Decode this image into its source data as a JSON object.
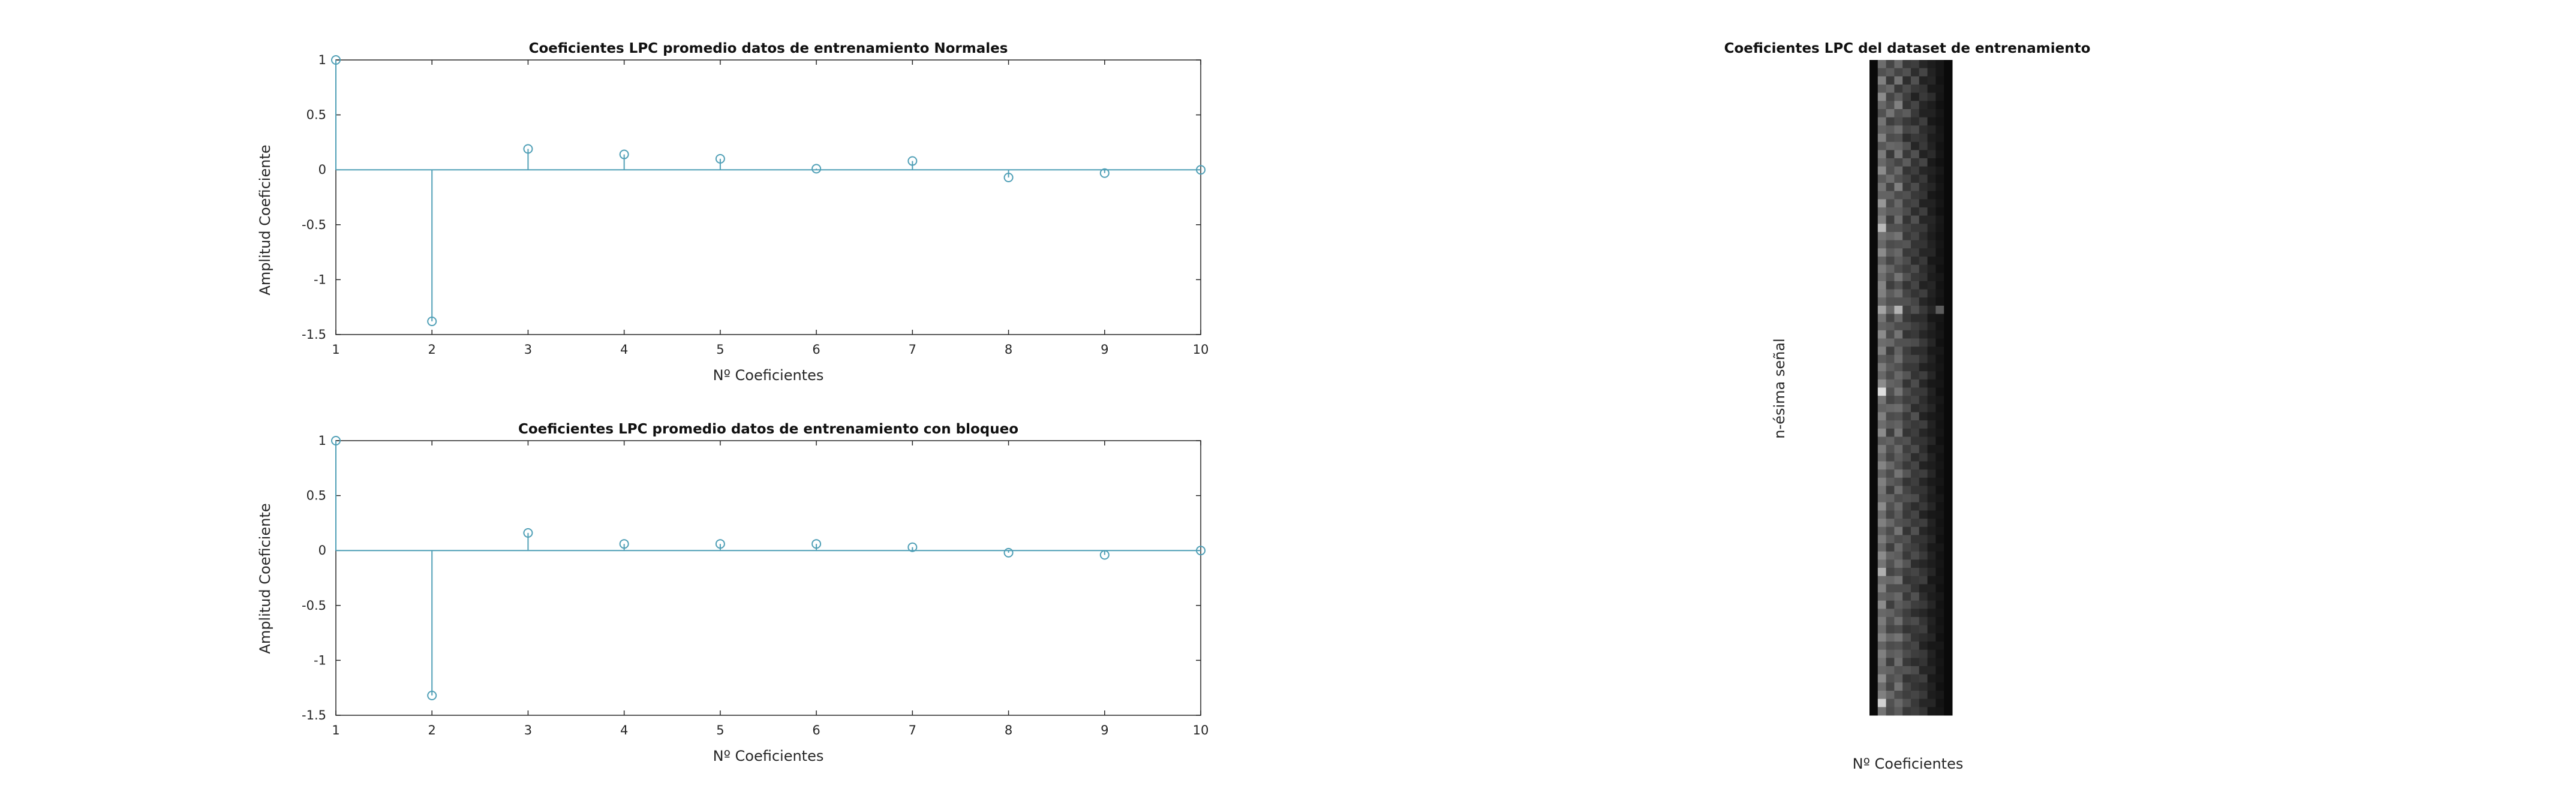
{
  "colors": {
    "stem": "#4f9fb6",
    "axis": "#262626",
    "heatmap_bg": "#0a0a0a"
  },
  "chart_data": [
    {
      "type": "stem",
      "title": "Coeficientes LPC promedio datos de entrenamiento Normales",
      "xlabel": "Nº Coeficientes",
      "ylabel": "Amplitud Coeficiente",
      "xlim": [
        1,
        10
      ],
      "ylim": [
        -1.5,
        1
      ],
      "xticks": [
        "1",
        "2",
        "3",
        "4",
        "5",
        "6",
        "7",
        "8",
        "9",
        "10"
      ],
      "yticks": [
        "1",
        "0.5",
        "0",
        "-0.5",
        "-1",
        "-1.5"
      ],
      "grid": false,
      "series": [
        {
          "x": [
            1,
            2,
            3,
            4,
            5,
            6,
            7,
            8,
            9,
            10
          ],
          "values": [
            1,
            -1.38,
            0.19,
            0.14,
            0.1,
            0.01,
            0.08,
            -0.07,
            -0.03,
            0.0
          ]
        }
      ]
    },
    {
      "type": "stem",
      "title": "Coeficientes LPC promedio datos de entrenamiento con bloqueo",
      "xlabel": "Nº Coeficientes",
      "ylabel": "Amplitud Coeficiente",
      "xlim": [
        1,
        10
      ],
      "ylim": [
        -1.5,
        1
      ],
      "xticks": [
        "1",
        "2",
        "3",
        "4",
        "5",
        "6",
        "7",
        "8",
        "9",
        "10"
      ],
      "yticks": [
        "1",
        "0.5",
        "0",
        "-0.5",
        "-1",
        "-1.5"
      ],
      "grid": false,
      "series": [
        {
          "x": [
            1,
            2,
            3,
            4,
            5,
            6,
            7,
            8,
            9,
            10
          ],
          "values": [
            1,
            -1.32,
            0.16,
            0.06,
            0.06,
            0.06,
            0.03,
            -0.02,
            -0.04,
            0.0
          ]
        }
      ]
    },
    {
      "type": "heatmap",
      "title": "Coeficientes LPC del dataset de entrenamiento",
      "xlabel": "Nº Coeficientes",
      "ylabel": "n-ésima señal",
      "colormap": "gray",
      "columns": 10,
      "rows": 80,
      "cells": [
        [
          0.0,
          0.42,
          0.25,
          0.4,
          0.2,
          0.22,
          0.12,
          0.08,
          0.05,
          0.0
        ],
        [
          0.0,
          0.3,
          0.35,
          0.25,
          0.3,
          0.15,
          0.25,
          0.1,
          0.05,
          0.0
        ],
        [
          0.0,
          0.5,
          0.2,
          0.45,
          0.15,
          0.3,
          0.1,
          0.12,
          0.04,
          0.0
        ],
        [
          0.0,
          0.35,
          0.4,
          0.2,
          0.28,
          0.2,
          0.18,
          0.07,
          0.06,
          0.0
        ],
        [
          0.0,
          0.55,
          0.25,
          0.35,
          0.22,
          0.1,
          0.2,
          0.15,
          0.05,
          0.0
        ],
        [
          0.0,
          0.4,
          0.3,
          0.5,
          0.18,
          0.25,
          0.12,
          0.08,
          0.03,
          0.0
        ],
        [
          0.0,
          0.3,
          0.45,
          0.3,
          0.35,
          0.2,
          0.1,
          0.1,
          0.05,
          0.0
        ],
        [
          0.0,
          0.45,
          0.22,
          0.28,
          0.2,
          0.15,
          0.22,
          0.06,
          0.04,
          0.0
        ],
        [
          0.0,
          0.38,
          0.35,
          0.42,
          0.25,
          0.28,
          0.15,
          0.12,
          0.05,
          0.0
        ],
        [
          0.0,
          0.5,
          0.28,
          0.3,
          0.15,
          0.2,
          0.18,
          0.08,
          0.06,
          0.0
        ],
        [
          0.0,
          0.33,
          0.4,
          0.38,
          0.3,
          0.12,
          0.2,
          0.1,
          0.04,
          0.0
        ],
        [
          0.0,
          0.48,
          0.2,
          0.45,
          0.2,
          0.3,
          0.1,
          0.14,
          0.05,
          0.0
        ],
        [
          0.0,
          0.4,
          0.32,
          0.25,
          0.35,
          0.18,
          0.25,
          0.07,
          0.03,
          0.0
        ],
        [
          0.0,
          0.55,
          0.3,
          0.4,
          0.18,
          0.22,
          0.12,
          0.1,
          0.06,
          0.0
        ],
        [
          0.0,
          0.35,
          0.42,
          0.3,
          0.25,
          0.15,
          0.2,
          0.08,
          0.04,
          0.0
        ],
        [
          0.0,
          0.45,
          0.25,
          0.5,
          0.2,
          0.28,
          0.15,
          0.12,
          0.05,
          0.0
        ],
        [
          0.0,
          0.38,
          0.38,
          0.28,
          0.3,
          0.2,
          0.18,
          0.06,
          0.04,
          0.0
        ],
        [
          0.0,
          0.6,
          0.28,
          0.4,
          0.22,
          0.25,
          0.1,
          0.1,
          0.05,
          0.0
        ],
        [
          0.0,
          0.42,
          0.35,
          0.35,
          0.28,
          0.15,
          0.22,
          0.08,
          0.03,
          0.0
        ],
        [
          0.0,
          0.5,
          0.22,
          0.42,
          0.18,
          0.3,
          0.12,
          0.12,
          0.06,
          0.0
        ],
        [
          0.0,
          0.75,
          0.3,
          0.3,
          0.25,
          0.2,
          0.2,
          0.1,
          0.05,
          0.0
        ],
        [
          0.0,
          0.45,
          0.4,
          0.45,
          0.2,
          0.25,
          0.15,
          0.08,
          0.04,
          0.0
        ],
        [
          0.0,
          0.4,
          0.28,
          0.3,
          0.32,
          0.18,
          0.18,
          0.1,
          0.05,
          0.0
        ],
        [
          0.0,
          0.55,
          0.35,
          0.4,
          0.2,
          0.22,
          0.12,
          0.12,
          0.04,
          0.0
        ],
        [
          0.0,
          0.38,
          0.25,
          0.35,
          0.28,
          0.15,
          0.2,
          0.06,
          0.05,
          0.0
        ],
        [
          0.0,
          0.48,
          0.38,
          0.28,
          0.22,
          0.28,
          0.15,
          0.1,
          0.03,
          0.0
        ],
        [
          0.0,
          0.42,
          0.3,
          0.45,
          0.3,
          0.2,
          0.18,
          0.08,
          0.06,
          0.0
        ],
        [
          0.0,
          0.52,
          0.22,
          0.3,
          0.18,
          0.25,
          0.1,
          0.12,
          0.04,
          0.0
        ],
        [
          0.0,
          0.5,
          0.35,
          0.42,
          0.25,
          0.18,
          0.22,
          0.1,
          0.05,
          0.0
        ],
        [
          0.0,
          0.4,
          0.3,
          0.3,
          0.3,
          0.25,
          0.12,
          0.08,
          0.04,
          0.0
        ],
        [
          0.0,
          0.65,
          0.4,
          0.72,
          0.22,
          0.3,
          0.2,
          0.12,
          0.35,
          0.0
        ],
        [
          0.0,
          0.45,
          0.25,
          0.4,
          0.2,
          0.15,
          0.15,
          0.06,
          0.05,
          0.0
        ],
        [
          0.0,
          0.38,
          0.35,
          0.28,
          0.28,
          0.22,
          0.18,
          0.1,
          0.04,
          0.0
        ],
        [
          0.0,
          0.55,
          0.28,
          0.45,
          0.18,
          0.2,
          0.12,
          0.08,
          0.05,
          0.0
        ],
        [
          0.0,
          0.42,
          0.4,
          0.3,
          0.3,
          0.28,
          0.2,
          0.12,
          0.03,
          0.0
        ],
        [
          0.0,
          0.5,
          0.22,
          0.38,
          0.22,
          0.15,
          0.15,
          0.07,
          0.06,
          0.0
        ],
        [
          0.0,
          0.35,
          0.3,
          0.42,
          0.25,
          0.25,
          0.18,
          0.1,
          0.04,
          0.0
        ],
        [
          0.0,
          0.48,
          0.35,
          0.3,
          0.2,
          0.2,
          0.1,
          0.08,
          0.05,
          0.0
        ],
        [
          0.0,
          0.4,
          0.28,
          0.4,
          0.32,
          0.18,
          0.22,
          0.12,
          0.04,
          0.0
        ],
        [
          0.0,
          0.55,
          0.38,
          0.35,
          0.18,
          0.28,
          0.12,
          0.06,
          0.05,
          0.0
        ],
        [
          0.0,
          0.9,
          0.3,
          0.45,
          0.28,
          0.2,
          0.2,
          0.1,
          0.03,
          0.0
        ],
        [
          0.0,
          0.45,
          0.25,
          0.3,
          0.22,
          0.25,
          0.15,
          0.08,
          0.06,
          0.0
        ],
        [
          0.0,
          0.38,
          0.4,
          0.42,
          0.3,
          0.15,
          0.18,
          0.12,
          0.04,
          0.0
        ],
        [
          0.0,
          0.5,
          0.28,
          0.3,
          0.2,
          0.3,
          0.1,
          0.07,
          0.05,
          0.0
        ],
        [
          0.0,
          0.42,
          0.35,
          0.38,
          0.25,
          0.2,
          0.22,
          0.1,
          0.04,
          0.0
        ],
        [
          0.0,
          0.55,
          0.22,
          0.45,
          0.18,
          0.22,
          0.12,
          0.08,
          0.05,
          0.0
        ],
        [
          0.0,
          0.35,
          0.38,
          0.28,
          0.3,
          0.18,
          0.18,
          0.12,
          0.03,
          0.0
        ],
        [
          0.0,
          0.48,
          0.3,
          0.4,
          0.22,
          0.28,
          0.15,
          0.06,
          0.06,
          0.0
        ],
        [
          0.0,
          0.4,
          0.25,
          0.35,
          0.28,
          0.15,
          0.2,
          0.1,
          0.04,
          0.0
        ],
        [
          0.0,
          0.52,
          0.4,
          0.3,
          0.2,
          0.25,
          0.1,
          0.08,
          0.05,
          0.0
        ],
        [
          0.0,
          0.38,
          0.28,
          0.45,
          0.32,
          0.2,
          0.22,
          0.12,
          0.04,
          0.0
        ],
        [
          0.0,
          0.5,
          0.35,
          0.3,
          0.18,
          0.22,
          0.12,
          0.07,
          0.05,
          0.0
        ],
        [
          0.0,
          0.45,
          0.22,
          0.42,
          0.25,
          0.18,
          0.18,
          0.1,
          0.03,
          0.0
        ],
        [
          0.0,
          0.4,
          0.38,
          0.28,
          0.3,
          0.28,
          0.15,
          0.08,
          0.06,
          0.0
        ],
        [
          0.0,
          0.55,
          0.3,
          0.4,
          0.22,
          0.15,
          0.2,
          0.12,
          0.04,
          0.0
        ],
        [
          0.0,
          0.42,
          0.25,
          0.35,
          0.2,
          0.25,
          0.1,
          0.06,
          0.05,
          0.0
        ],
        [
          0.0,
          0.5,
          0.4,
          0.3,
          0.28,
          0.2,
          0.22,
          0.1,
          0.04,
          0.0
        ],
        [
          0.0,
          0.38,
          0.28,
          0.45,
          0.18,
          0.3,
          0.12,
          0.08,
          0.05,
          0.0
        ],
        [
          0.0,
          0.48,
          0.35,
          0.28,
          0.3,
          0.18,
          0.18,
          0.12,
          0.03,
          0.0
        ],
        [
          0.0,
          0.4,
          0.22,
          0.4,
          0.25,
          0.22,
          0.15,
          0.07,
          0.06,
          0.0
        ],
        [
          0.0,
          0.55,
          0.38,
          0.35,
          0.2,
          0.28,
          0.2,
          0.1,
          0.04,
          0.0
        ],
        [
          0.0,
          0.45,
          0.3,
          0.42,
          0.32,
          0.15,
          0.12,
          0.08,
          0.05,
          0.0
        ],
        [
          0.0,
          0.7,
          0.25,
          0.3,
          0.22,
          0.25,
          0.18,
          0.12,
          0.04,
          0.0
        ],
        [
          0.0,
          0.42,
          0.4,
          0.45,
          0.18,
          0.2,
          0.22,
          0.06,
          0.05,
          0.0
        ],
        [
          0.0,
          0.5,
          0.28,
          0.28,
          0.28,
          0.18,
          0.1,
          0.1,
          0.03,
          0.0
        ],
        [
          0.0,
          0.38,
          0.35,
          0.4,
          0.2,
          0.3,
          0.15,
          0.08,
          0.06,
          0.0
        ],
        [
          0.0,
          0.55,
          0.22,
          0.35,
          0.3,
          0.22,
          0.2,
          0.12,
          0.04,
          0.0
        ],
        [
          0.0,
          0.4,
          0.38,
          0.3,
          0.22,
          0.15,
          0.12,
          0.07,
          0.05,
          0.0
        ],
        [
          0.0,
          0.48,
          0.3,
          0.42,
          0.25,
          0.28,
          0.18,
          0.1,
          0.04,
          0.0
        ],
        [
          0.0,
          0.42,
          0.25,
          0.28,
          0.18,
          0.2,
          0.22,
          0.08,
          0.05,
          0.0
        ],
        [
          0.0,
          0.52,
          0.4,
          0.45,
          0.3,
          0.18,
          0.15,
          0.12,
          0.03,
          0.0
        ],
        [
          0.0,
          0.38,
          0.28,
          0.3,
          0.22,
          0.25,
          0.1,
          0.06,
          0.06,
          0.0
        ],
        [
          0.0,
          0.5,
          0.35,
          0.38,
          0.28,
          0.22,
          0.2,
          0.1,
          0.04,
          0.0
        ],
        [
          0.0,
          0.45,
          0.22,
          0.42,
          0.2,
          0.15,
          0.18,
          0.08,
          0.05,
          0.0
        ],
        [
          0.0,
          0.4,
          0.38,
          0.3,
          0.32,
          0.28,
          0.12,
          0.12,
          0.04,
          0.0
        ],
        [
          0.0,
          0.55,
          0.3,
          0.35,
          0.18,
          0.2,
          0.22,
          0.07,
          0.05,
          0.0
        ],
        [
          0.0,
          0.42,
          0.25,
          0.45,
          0.25,
          0.18,
          0.15,
          0.1,
          0.03,
          0.0
        ],
        [
          0.0,
          0.5,
          0.4,
          0.28,
          0.22,
          0.25,
          0.2,
          0.08,
          0.06,
          0.0
        ],
        [
          0.0,
          0.85,
          0.3,
          0.4,
          0.3,
          0.2,
          0.12,
          0.12,
          0.04,
          0.0
        ],
        [
          0.0,
          0.45,
          0.28,
          0.35,
          0.2,
          0.22,
          0.18,
          0.06,
          0.05,
          0.0
        ]
      ]
    }
  ]
}
